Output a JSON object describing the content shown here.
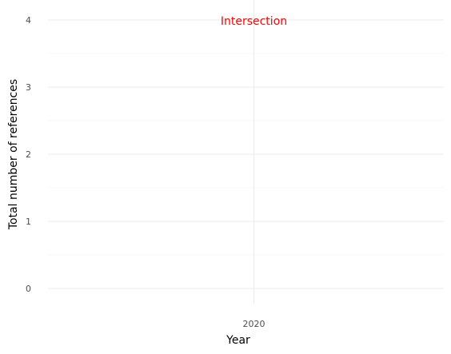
{
  "chart_data": {
    "type": "line",
    "title": "",
    "xlabel": "Year",
    "ylabel": "Total number of references",
    "x_ticks": [
      2020
    ],
    "y_ticks": [
      0,
      1,
      2,
      3,
      4
    ],
    "ylim": [
      0,
      4
    ],
    "grid": true,
    "series": [],
    "annotations": [
      {
        "text": "Intersection",
        "x": 2020,
        "y": 4,
        "color": "#ff0000"
      }
    ]
  },
  "colors": {
    "grid_major": "#ebebeb",
    "grid_minor": "#f7f7f7"
  }
}
